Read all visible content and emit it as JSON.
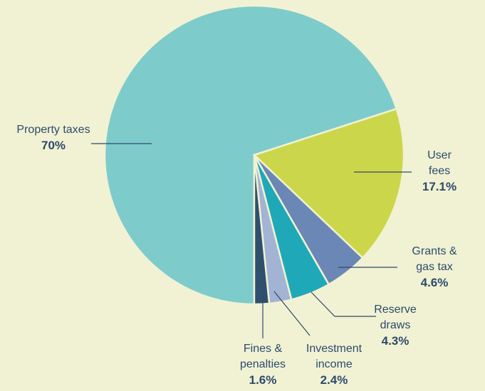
{
  "chart_data": {
    "type": "pie",
    "categories": [
      "Property taxes",
      "User fees",
      "Grants &\ngas tax",
      "Reserve\ndraws",
      "Investment\nincome",
      "Fines &\npenalties"
    ],
    "values": [
      70,
      17.1,
      4.6,
      4.3,
      2.4,
      1.6
    ],
    "value_labels": [
      "70%",
      "17.1%",
      "4.6%",
      "4.3%",
      "2.4%",
      "1.6%"
    ],
    "colors": [
      "#7ecbcb",
      "#ccd64a",
      "#6b87b5",
      "#1fa8b8",
      "#a3b3d4",
      "#2f4f6e"
    ]
  }
}
